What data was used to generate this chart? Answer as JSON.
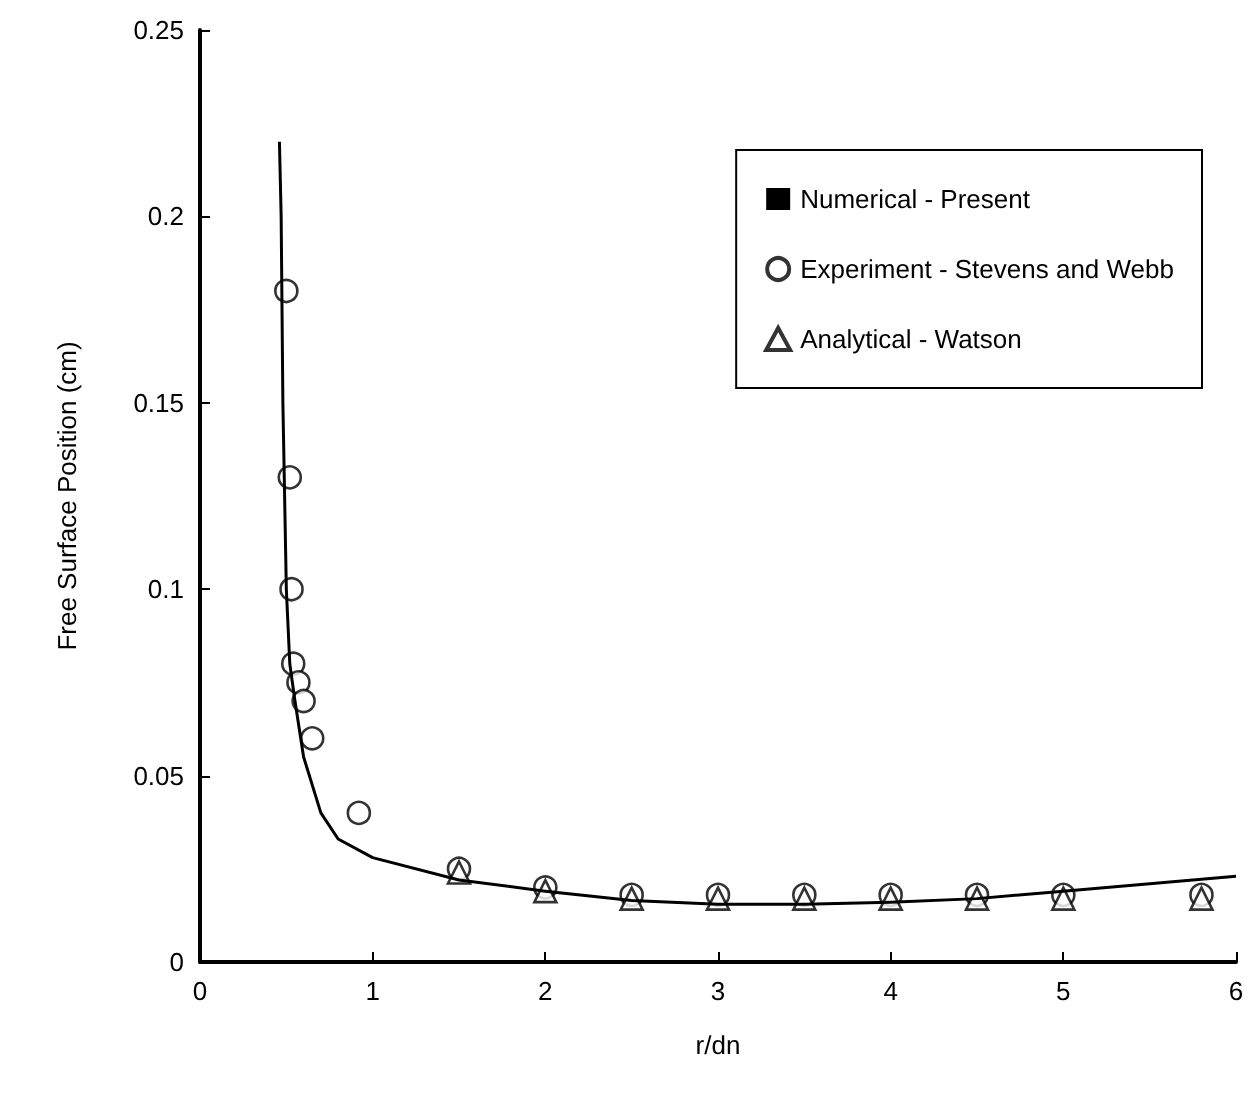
{
  "chart_data": {
    "type": "line",
    "xlabel": "r/dn",
    "ylabel": "Free Surface Position (cm)",
    "xlim": [
      0,
      6
    ],
    "xticks": [
      0,
      1,
      2,
      3,
      4,
      5,
      6
    ],
    "ylim": [
      0,
      0.25
    ],
    "yticks": [
      0,
      0.05,
      0.1,
      0.15,
      0.2,
      0.25
    ],
    "grid": false,
    "legend": "top right",
    "series": [
      {
        "name": "Numerical - Present",
        "color": "#000000",
        "marker": "none",
        "line_style": "solid",
        "x": [
          0.46,
          0.47,
          0.48,
          0.5,
          0.52,
          0.55,
          0.6,
          0.7,
          0.8,
          1.0,
          1.5,
          2,
          2.5,
          3,
          3.5,
          4,
          4.5,
          5,
          5.5,
          6
        ],
        "values": [
          0.22,
          0.2,
          0.15,
          0.1,
          0.08,
          0.07,
          0.055,
          0.04,
          0.033,
          0.028,
          0.022,
          0.019,
          0.0165,
          0.0155,
          0.0155,
          0.016,
          0.017,
          0.019,
          0.021,
          0.023
        ]
      },
      {
        "name": "Experiment - Stevens and Webb",
        "type": "scatter",
        "color": "#000000",
        "marker": "circle",
        "x": [
          0.5,
          0.52,
          0.53,
          0.54,
          0.57,
          0.6,
          0.65,
          0.92,
          1.5,
          2,
          2.5,
          3,
          3.5,
          4,
          4.5,
          5,
          5.8
        ],
        "values": [
          0.18,
          0.13,
          0.1,
          0.08,
          0.075,
          0.07,
          0.06,
          0.04,
          0.025,
          0.02,
          0.018,
          0.018,
          0.018,
          0.018,
          0.018,
          0.018,
          0.018
        ]
      },
      {
        "name": "Analytical - Watson",
        "type": "scatter",
        "color": "#000000",
        "marker": "triangle",
        "x": [
          1.5,
          2,
          2.5,
          3,
          3.5,
          4,
          4.5,
          5,
          5.8
        ],
        "values": [
          0.024,
          0.019,
          0.017,
          0.017,
          0.017,
          0.017,
          0.017,
          0.017,
          0.017
        ]
      }
    ]
  }
}
